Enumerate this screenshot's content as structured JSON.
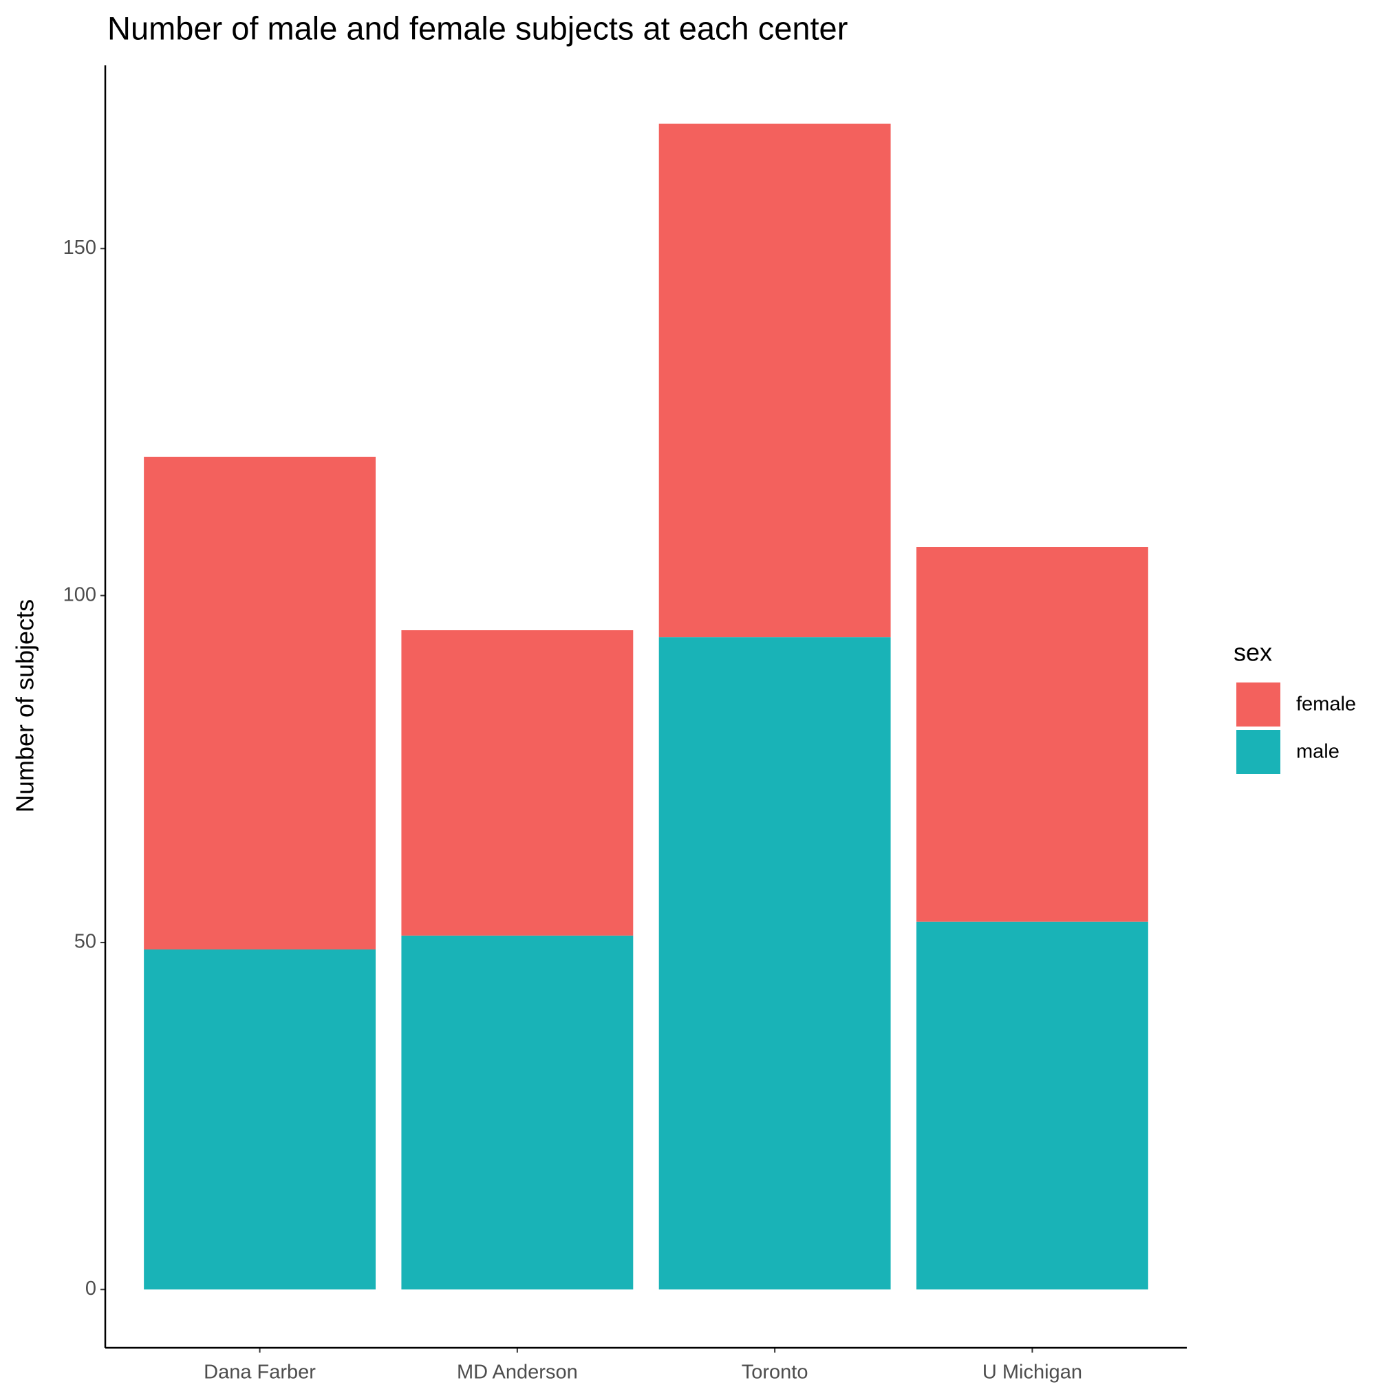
{
  "chart_data": {
    "type": "stacked_bar",
    "title": "Number of male and female subjects at each center",
    "y_label": "Number of subjects",
    "categories": [
      "Dana Farber",
      "MD Anderson",
      "Toronto",
      "U Michigan"
    ],
    "legend_title": "sex",
    "series": [
      {
        "name": "female",
        "color": "#f3615d",
        "values": [
          71,
          44,
          74,
          54
        ]
      },
      {
        "name": "male",
        "color": "#19b3b7",
        "values": [
          49,
          51,
          94,
          53
        ]
      }
    ],
    "ylim": [
      -8.4,
      176.4
    ],
    "yticks": [
      0,
      50,
      100,
      150
    ],
    "grid": false,
    "legend": "right"
  }
}
